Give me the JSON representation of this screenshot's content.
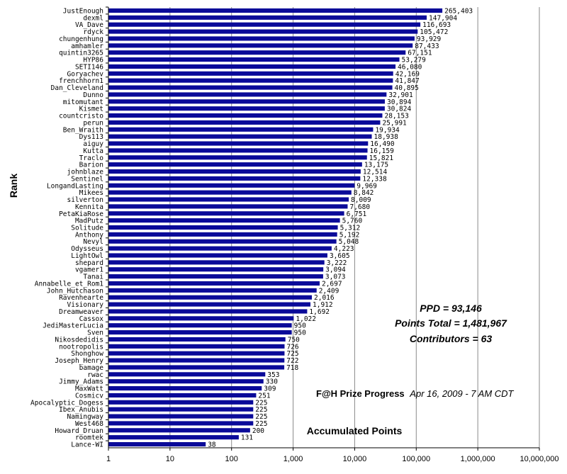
{
  "chart_data": {
    "type": "bar",
    "orientation": "horizontal",
    "x_scale": "log",
    "xlim": [
      1,
      10000000
    ],
    "x_ticks": [
      "1",
      "10",
      "100",
      "1,000",
      "10,000",
      "100,000",
      "1,000,000",
      "10,000,000"
    ],
    "grid": true,
    "bar_color": "#0a0a99",
    "ylabel": "Rank",
    "xlabel": "Accumulated Points",
    "annotations": {
      "ppd": "PPD = 93,146",
      "points_total": "Points Total = 1,481,967",
      "contributors": "Contributors = 63",
      "progress_title": "F@H Prize Progress",
      "progress_date": "Apr 16, 2009 - 7 AM CDT"
    },
    "categories": [
      "JustEnough",
      "dexml",
      "VA_Dave",
      "rdyck",
      "chungenhung",
      "amhamler",
      "quintin3265",
      "HYP86",
      "SETI146",
      "Goryachev",
      "frenchhorn1",
      "Dan_Cleveland",
      "Dunno",
      "mitomutant",
      "Kismet",
      "countcristo",
      "perun",
      "Ben_Wraith",
      "Dys113",
      "aiguy",
      "Kutta",
      "Traclo",
      "Barion",
      "johnblaze",
      "Sentinel",
      "LongandLasting",
      "Mikees",
      "silverton",
      "Kennita",
      "PetaKiaRose",
      "MadPutz",
      "Solitude",
      "Anthony",
      "Nevyl",
      "Odysseus",
      "LightOwl",
      "shepard",
      "vgamer1",
      "Tanai",
      "Annabelle_et_Rom1",
      "John_Hutchason",
      "Ravenhearte",
      "Visionary",
      "Dreamweaver",
      "Cassox",
      "JediMasterLucia",
      "Sven",
      "Nikosdedidis",
      "nootropolis",
      "Shonghow",
      "Joseph_Henry",
      "bamage",
      "rwac",
      "Jimmy_Adams",
      "MaxWatt",
      "Cosmicv",
      "Apocalyptic_Dogess",
      "Ibex_Anubis",
      "Namingway",
      "West468",
      "Howard_Druan",
      "roomtek",
      "Lance-WI"
    ],
    "values": [
      265403,
      147904,
      116693,
      105472,
      93929,
      87433,
      67151,
      53279,
      46080,
      42169,
      41847,
      40895,
      32901,
      30894,
      30824,
      28153,
      25991,
      19934,
      18938,
      16490,
      16159,
      15821,
      13175,
      12514,
      12338,
      9969,
      8842,
      8009,
      7680,
      6751,
      5760,
      5312,
      5192,
      5048,
      4223,
      3605,
      3222,
      3094,
      3073,
      2697,
      2409,
      2016,
      1912,
      1692,
      1022,
      950,
      950,
      750,
      726,
      725,
      722,
      718,
      353,
      330,
      309,
      251,
      225,
      225,
      225,
      225,
      200,
      131,
      38
    ],
    "value_labels": [
      "265,403",
      "147,904",
      "116,693",
      "105,472",
      "93,929",
      "87,433",
      "67,151",
      "53,279",
      "46,080",
      "42,169",
      "41,847",
      "40,895",
      "32,901",
      "30,894",
      "30,824",
      "28,153",
      "25,991",
      "19,934",
      "18,938",
      "16,490",
      "16,159",
      "15,821",
      "13,175",
      "12,514",
      "12,338",
      "9,969",
      "8,842",
      "8,009",
      "7,680",
      "6,751",
      "5,760",
      "5,312",
      "5,192",
      "5,048",
      "4,223",
      "3,605",
      "3,222",
      "3,094",
      "3,073",
      "2,697",
      "2,409",
      "2,016",
      "1,912",
      "1,692",
      "1,022",
      "950",
      "950",
      "750",
      "726",
      "725",
      "722",
      "718",
      "353",
      "330",
      "309",
      "251",
      "225",
      "225",
      "225",
      "225",
      "200",
      "131",
      "38"
    ]
  }
}
